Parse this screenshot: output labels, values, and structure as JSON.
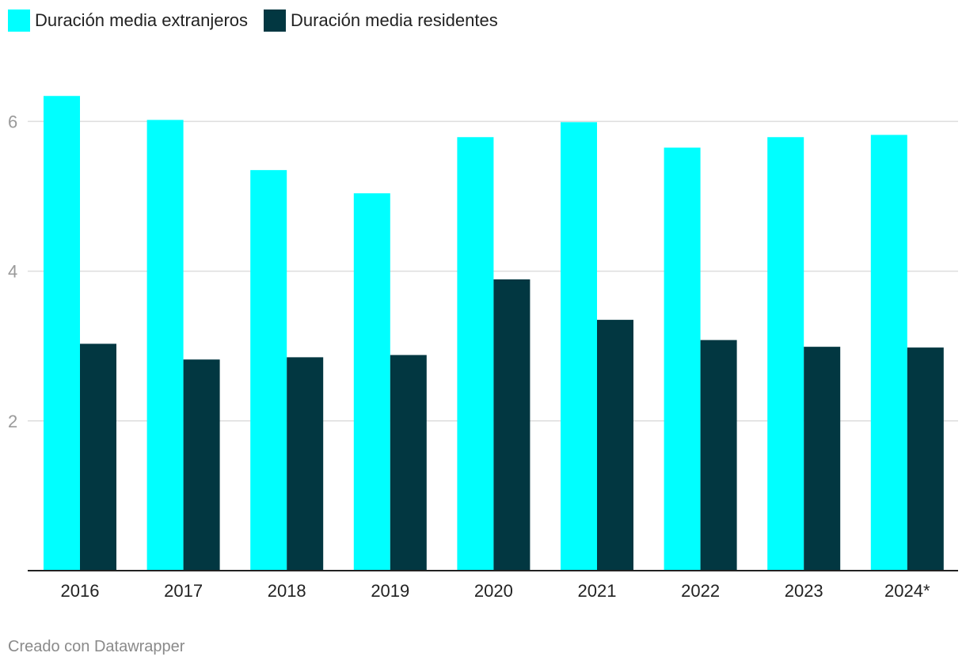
{
  "legend": [
    {
      "label": "Duración media extranjeros",
      "color": "#00ffff"
    },
    {
      "label": "Duración media residentes",
      "color": "#023741"
    }
  ],
  "chart_data": {
    "type": "bar",
    "title": "",
    "xlabel": "",
    "ylabel": "",
    "categories": [
      "2016",
      "2017",
      "2018",
      "2019",
      "2020",
      "2021",
      "2022",
      "2023",
      "2024*"
    ],
    "series": [
      {
        "name": "Duración media extranjeros",
        "color": "#00ffff",
        "values": [
          6.34,
          6.02,
          5.35,
          5.04,
          5.79,
          5.99,
          5.65,
          5.79,
          5.82
        ]
      },
      {
        "name": "Duración media residentes",
        "color": "#023741",
        "values": [
          3.03,
          2.82,
          2.85,
          2.88,
          3.89,
          3.35,
          3.08,
          2.99,
          2.98
        ]
      }
    ],
    "ylim": [
      0,
      7
    ],
    "yticks": [
      2,
      4,
      6
    ],
    "grid": true,
    "legend_position": "top-left"
  },
  "footer": {
    "credit": "Creado con Datawrapper"
  }
}
